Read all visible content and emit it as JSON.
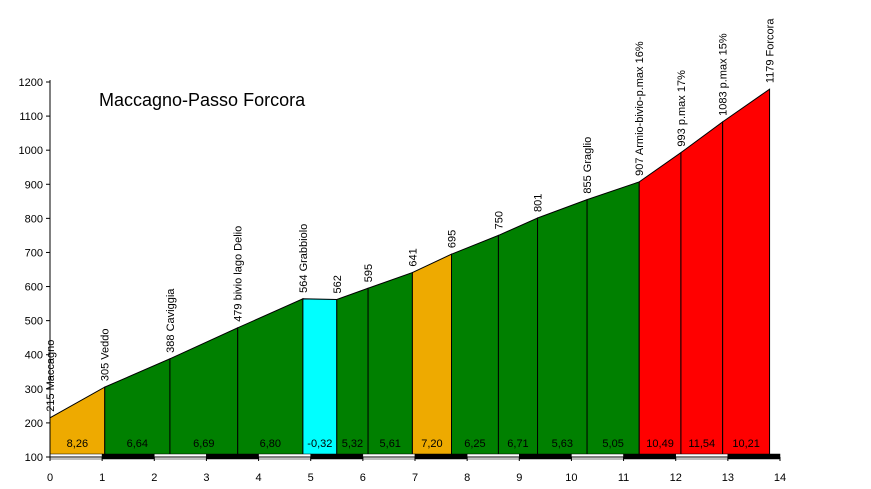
{
  "chart_data": {
    "type": "area",
    "title": "Maccagno-Passo Forcora",
    "xlabel": "",
    "ylabel": "",
    "xlim": [
      0,
      14
    ],
    "ylim": [
      100,
      1200
    ],
    "x_ticks": [
      0,
      1,
      2,
      3,
      4,
      5,
      6,
      7,
      8,
      9,
      10,
      11,
      12,
      13,
      14
    ],
    "y_ticks": [
      100,
      200,
      300,
      400,
      500,
      600,
      700,
      800,
      900,
      1000,
      1100,
      1200
    ],
    "grid": false,
    "profile": [
      {
        "km": 0.0,
        "alt": 215,
        "label": "215 Maccagno"
      },
      {
        "km": 1.05,
        "alt": 305,
        "label": "305 Veddo"
      },
      {
        "km": 2.3,
        "alt": 388,
        "label": "388 Caviggia"
      },
      {
        "km": 3.6,
        "alt": 479,
        "label": "479 bivio lago Delio"
      },
      {
        "km": 4.85,
        "alt": 564,
        "label": "564 Grabbiolo"
      },
      {
        "km": 5.5,
        "alt": 562,
        "label": "562"
      },
      {
        "km": 6.1,
        "alt": 595,
        "label": "595"
      },
      {
        "km": 6.95,
        "alt": 641,
        "label": "641"
      },
      {
        "km": 7.7,
        "alt": 695,
        "label": "695"
      },
      {
        "km": 8.6,
        "alt": 750,
        "label": "750"
      },
      {
        "km": 9.35,
        "alt": 801,
        "label": "801"
      },
      {
        "km": 10.3,
        "alt": 855,
        "label": "855 Graglio"
      },
      {
        "km": 11.3,
        "alt": 907,
        "label": "907 Armio-bivio-p.max 16%"
      },
      {
        "km": 12.1,
        "alt": 993,
        "label": "993 p.max 17%"
      },
      {
        "km": 12.9,
        "alt": 1083,
        "label": "1083 p.max 15%"
      },
      {
        "km": 13.8,
        "alt": 1179,
        "label": "1179 Forcora"
      }
    ],
    "segments": [
      {
        "gradient": "8,26",
        "color": "#EEAA00"
      },
      {
        "gradient": "6,64",
        "color": "#008000"
      },
      {
        "gradient": "6,69",
        "color": "#008000"
      },
      {
        "gradient": "6,80",
        "color": "#008000"
      },
      {
        "gradient": "-0,32",
        "color": "#00FFFF"
      },
      {
        "gradient": "5,32",
        "color": "#008000"
      },
      {
        "gradient": "5,61",
        "color": "#008000"
      },
      {
        "gradient": "7,20",
        "color": "#EEAA00"
      },
      {
        "gradient": "6,25",
        "color": "#008000"
      },
      {
        "gradient": "6,71",
        "color": "#008000"
      },
      {
        "gradient": "5,63",
        "color": "#008000"
      },
      {
        "gradient": "5,05",
        "color": "#008000"
      },
      {
        "gradient": "10,49",
        "color": "#FF0000"
      },
      {
        "gradient": "11,54",
        "color": "#FF0000"
      },
      {
        "gradient": "10,21",
        "color": "#FF0000"
      }
    ]
  }
}
